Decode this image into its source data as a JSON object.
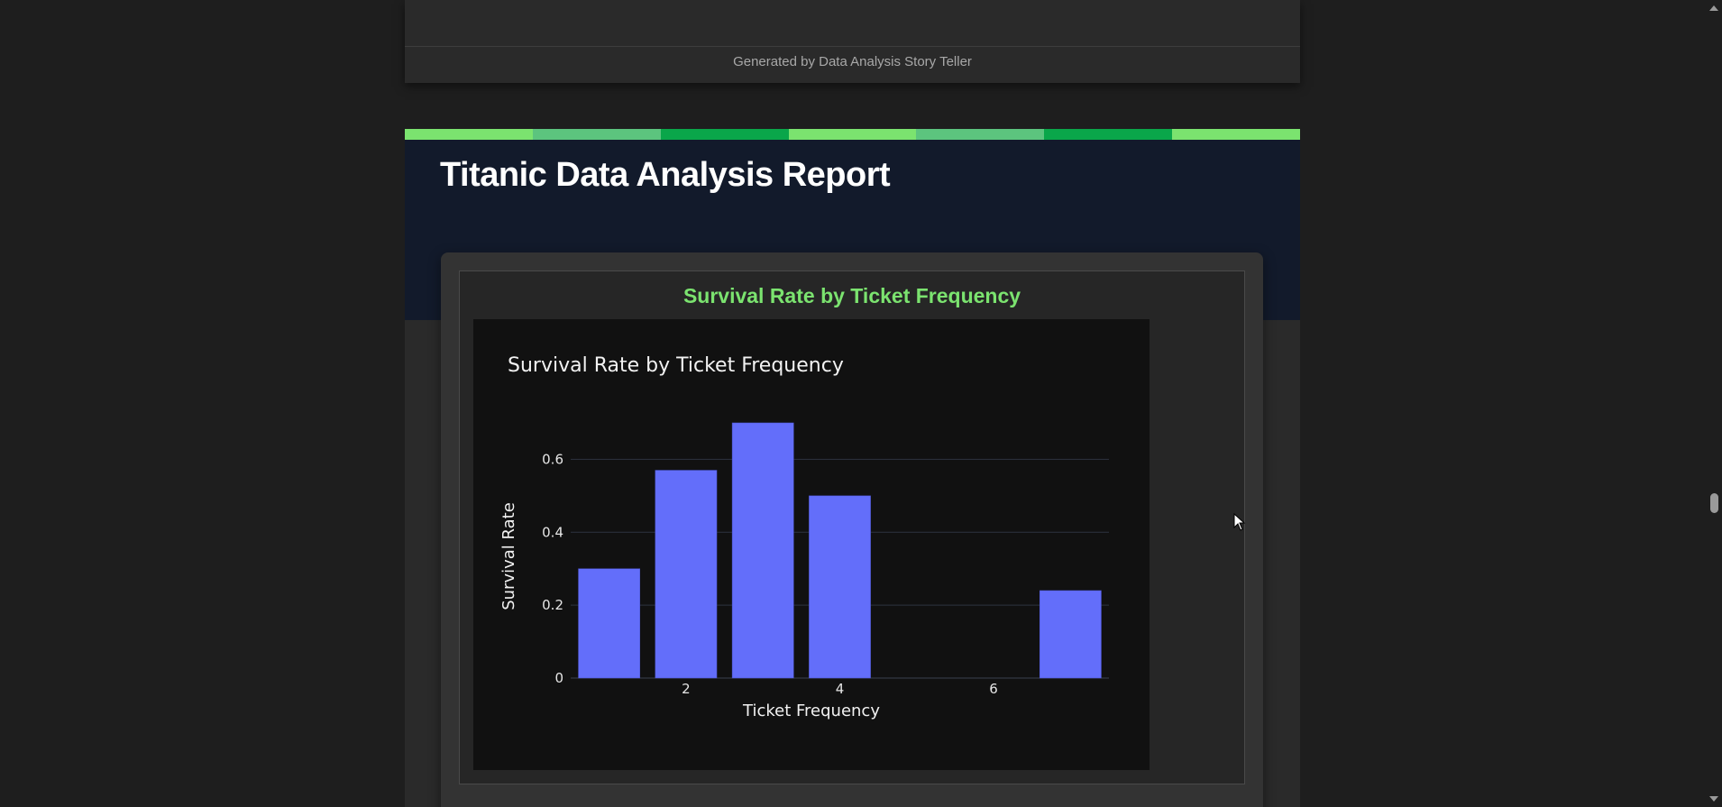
{
  "previous_report": {
    "footer_text": "Generated by Data Analysis Story Teller"
  },
  "report": {
    "title": "Titanic Data Analysis Report",
    "stripe_colors": [
      "#7be36f",
      "#5cc47e",
      "#0aa64a",
      "#7be36f",
      "#5cc47e",
      "#0aa64a",
      "#7be36f"
    ],
    "visualization": {
      "card_title": "Survival Rate by Ticket Frequency"
    }
  },
  "chart_data": {
    "type": "bar",
    "title": "Survival Rate by Ticket Frequency",
    "xlabel": "Ticket Frequency",
    "ylabel": "Survival Rate",
    "x": [
      1,
      2,
      3,
      4,
      5,
      6,
      7
    ],
    "values": [
      0.3,
      0.57,
      0.7,
      0.5,
      0,
      0,
      0.24
    ],
    "xlim": [
      0.5,
      7.5
    ],
    "ylim": [
      0,
      0.737
    ],
    "xticks": [
      2,
      4,
      6
    ],
    "yticks": [
      0,
      0.2,
      0.4,
      0.6
    ],
    "ytick_labels": [
      "0",
      "0.2",
      "0.4",
      "0.6"
    ],
    "grid": true,
    "bar_color": "#636efa"
  }
}
